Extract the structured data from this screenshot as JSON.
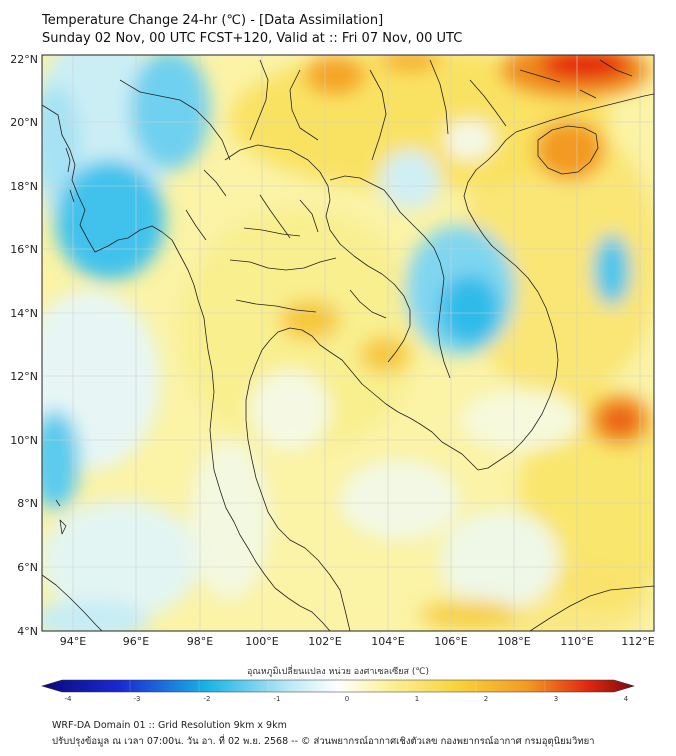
{
  "header": {
    "title": "Temperature Change 24-hr (℃) - [Data Assimilation]",
    "subtitle": "Sunday 02 Nov, 00 UTC FCST+120, Valid at :: Fri 07 Nov, 00 UTC"
  },
  "map": {
    "lat_labels": [
      "22°N",
      "20°N",
      "18°N",
      "16°N",
      "14°N",
      "12°N",
      "10°N",
      "8°N",
      "6°N",
      "4°N"
    ],
    "lon_labels": [
      "94°E",
      "96°E",
      "98°E",
      "100°E",
      "102°E",
      "104°E",
      "106°E",
      "108°E",
      "110°E",
      "112°E"
    ],
    "colors": {
      "cold": "#19b5e6",
      "cool": "#9fdcf2",
      "neutral": "#fbfbe8",
      "warm": "#f8e45c",
      "hot": "#f5a623",
      "very_hot": "#e8461a",
      "extreme": "#e5170f"
    }
  },
  "colorbar": {
    "label": "อุณหภูมิเปลี่ยนแปลง หน่วย องศาเซลเซียส (℃)",
    "ticks": [
      "-4",
      "-3",
      "-2",
      "-1",
      "0",
      "1",
      "2",
      "3",
      "4"
    ],
    "range": [
      -4,
      4
    ]
  },
  "footer": {
    "line1": "WRF-DA Domain 01 :: Grid Resolution 9km x 9km",
    "line2": "ปรับปรุงข้อมูล ณ เวลา 07:00น. วัน อา. ที่ 02 พ.ย. 2568 -- © ส่วนพยากรณ์อากาศเชิงตัวเลข กองพยากรณ์อากาศ กรมอุตุนิยมวิทยา"
  }
}
